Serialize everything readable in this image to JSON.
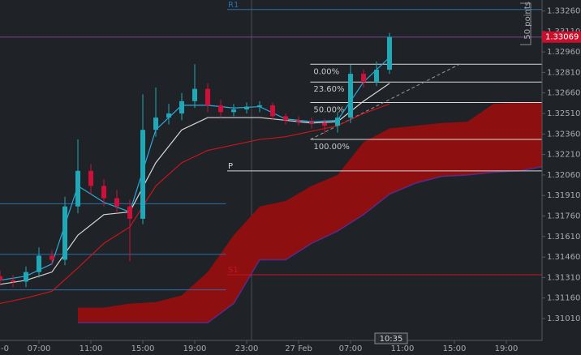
{
  "chart_data": {
    "type": "candlestick",
    "x": [
      1,
      2,
      3,
      4,
      5,
      6,
      7,
      8,
      9,
      10,
      11,
      12,
      13,
      14,
      15,
      16,
      17,
      18,
      19,
      20,
      21,
      22,
      23,
      24,
      25,
      26,
      27,
      28,
      29,
      30,
      31
    ],
    "open": [
      1.3132,
      1.3129,
      1.3128,
      1.3135,
      1.3147,
      1.3144,
      1.3183,
      1.3209,
      1.3198,
      1.3189,
      1.3183,
      1.3174,
      1.3239,
      1.3248,
      1.3251,
      1.326,
      1.3269,
      1.3257,
      1.3252,
      1.3254,
      1.3256,
      1.3257,
      1.3249,
      1.3246,
      1.3245,
      1.3244,
      1.3242,
      1.3248,
      1.328,
      1.3274,
      1.3283
    ],
    "high": [
      1.3136,
      1.3133,
      1.3139,
      1.3153,
      1.3151,
      1.319,
      1.3232,
      1.3214,
      1.3203,
      1.3195,
      1.3188,
      1.3265,
      1.327,
      1.3258,
      1.3266,
      1.3287,
      1.3273,
      1.3261,
      1.3258,
      1.3259,
      1.326,
      1.3259,
      1.3251,
      1.3249,
      1.3248,
      1.3247,
      1.3252,
      1.3287,
      1.3283,
      1.3289,
      1.331
    ],
    "low": [
      1.3125,
      1.3124,
      1.3124,
      1.3131,
      1.314,
      1.314,
      1.3178,
      1.3192,
      1.3183,
      1.3178,
      1.3143,
      1.317,
      1.3234,
      1.3243,
      1.3246,
      1.3255,
      1.3252,
      1.3248,
      1.3249,
      1.3251,
      1.3252,
      1.3246,
      1.3243,
      1.3242,
      1.324,
      1.3236,
      1.3237,
      1.3244,
      1.327,
      1.3271,
      1.328
    ],
    "close": [
      1.3129,
      1.3128,
      1.3135,
      1.3147,
      1.3144,
      1.3183,
      1.3209,
      1.3198,
      1.3189,
      1.3183,
      1.3174,
      1.3239,
      1.3248,
      1.3251,
      1.326,
      1.3269,
      1.3257,
      1.3252,
      1.3254,
      1.3256,
      1.3257,
      1.3249,
      1.3246,
      1.3245,
      1.3244,
      1.3242,
      1.3248,
      1.328,
      1.3274,
      1.3283,
      1.33069
    ],
    "up_color": "#1fa9b8",
    "down_color": "#d0103a",
    "series": [
      {
        "color": "#2aa9dc",
        "x": [
          1,
          3,
          5,
          7,
          9,
          11,
          13,
          15,
          17,
          19,
          21,
          23,
          25,
          27,
          29,
          31
        ],
        "values": [
          1.3129,
          1.3132,
          1.3141,
          1.3198,
          1.3186,
          1.3179,
          1.3239,
          1.3257,
          1.3257,
          1.3255,
          1.3256,
          1.3247,
          1.3245,
          1.3246,
          1.3274,
          1.3292
        ]
      },
      {
        "color": "#d6d6d6",
        "x": [
          1,
          3,
          5,
          7,
          9,
          11,
          13,
          15,
          17,
          19,
          21,
          23,
          25,
          27,
          29,
          31
        ],
        "values": [
          1.3126,
          1.3129,
          1.3135,
          1.3162,
          1.3177,
          1.3179,
          1.3215,
          1.3239,
          1.3248,
          1.3248,
          1.3248,
          1.3246,
          1.3244,
          1.3245,
          1.326,
          1.3273
        ]
      },
      {
        "color": "#c8161d",
        "x": [
          1,
          3,
          5,
          7,
          9,
          11,
          13,
          15,
          17,
          19,
          21,
          23,
          25,
          27,
          29,
          31
        ],
        "values": [
          1.3112,
          1.3116,
          1.3121,
          1.3138,
          1.3156,
          1.3168,
          1.3198,
          1.3215,
          1.3224,
          1.3228,
          1.3232,
          1.3234,
          1.3238,
          1.3242,
          1.3251,
          1.3258
        ]
      }
    ],
    "cloud": {
      "color": "#8e0f10",
      "edge_color": "#5a2a8a",
      "x": [
        7,
        9,
        11,
        13,
        15,
        17,
        19,
        21,
        23,
        25,
        27,
        29,
        31,
        33,
        35,
        37,
        39,
        41,
        42.75
      ],
      "upper": [
        1.3109,
        1.3109,
        1.3112,
        1.3113,
        1.3118,
        1.3135,
        1.3162,
        1.3183,
        1.3187,
        1.3198,
        1.3206,
        1.323,
        1.324,
        1.3242,
        1.3244,
        1.3245,
        1.3258,
        1.3259,
        1.3259
      ],
      "lower": [
        1.3098,
        1.3098,
        1.3098,
        1.3098,
        1.3098,
        1.3098,
        1.3112,
        1.3144,
        1.3144,
        1.3156,
        1.3165,
        1.3177,
        1.3192,
        1.32,
        1.3205,
        1.3206,
        1.3208,
        1.3209,
        1.3212
      ]
    },
    "levels": [
      {
        "name": "R1",
        "value": 1.3327,
        "start": 18.5,
        "color": "#2a6fa8"
      },
      {
        "name": "P",
        "value": 1.3209,
        "start": 18.5,
        "color": "#d8d8d8"
      },
      {
        "name": "S1",
        "value": 1.3133,
        "start": 18.5,
        "color": "#c8161d"
      }
    ],
    "previous_levels": {
      "values": [
        1.3185,
        1.3148,
        1.3122
      ],
      "end": 18.4,
      "color": "#2a6fa8"
    },
    "fib": {
      "start": 24.9,
      "color": "#d8d8d8",
      "levels": [
        {
          "label": "0.00%",
          "value": 1.3287
        },
        {
          "label": "23.60%",
          "value": 1.3274
        },
        {
          "label": "50.00%",
          "value": 1.3259
        },
        {
          "label": "100.00%",
          "value": 1.3232
        }
      ]
    },
    "trendline": {
      "x": [
        24.9,
        36.6
      ],
      "values": [
        1.3232,
        1.3288
      ],
      "color": "#9a9a9a"
    },
    "last": 1.33069,
    "last_color": "#c8102e",
    "ruler_label": "50 points",
    "cursor_time": "10:35",
    "xlim": [
      1,
      42.75
    ],
    "ylim": [
      1.3085,
      1.3334
    ],
    "xticks": [
      {
        "value": 0,
        "label": "-0"
      },
      {
        "value": 4,
        "label": "07:00"
      },
      {
        "value": 8,
        "label": "11:00"
      },
      {
        "value": 12,
        "label": "15:00"
      },
      {
        "value": 16,
        "label": "19:00"
      },
      {
        "value": 20,
        "label": "23:00"
      },
      {
        "value": 24,
        "label": "27 Feb"
      },
      {
        "value": 28,
        "label": "07:00"
      },
      {
        "value": 32,
        "label": "11:00"
      },
      {
        "value": 36,
        "label": "15:00"
      },
      {
        "value": 40,
        "label": "19:00"
      }
    ],
    "yticks": [
      {
        "value": 1.3326,
        "label": "1.33260"
      },
      {
        "value": 1.3311,
        "label": "1.33110"
      },
      {
        "value": 1.3296,
        "label": "1.32960"
      },
      {
        "value": 1.3281,
        "label": "1.32810"
      },
      {
        "value": 1.3266,
        "label": "1.32660"
      },
      {
        "value": 1.3251,
        "label": "1.32510"
      },
      {
        "value": 1.3236,
        "label": "1.32360"
      },
      {
        "value": 1.3221,
        "label": "1.32210"
      },
      {
        "value": 1.3206,
        "label": "1.32060"
      },
      {
        "value": 1.3191,
        "label": "1.31910"
      },
      {
        "value": 1.3176,
        "label": "1.31760"
      },
      {
        "value": 1.3161,
        "label": "1.31610"
      },
      {
        "value": 1.3146,
        "label": "1.31460"
      },
      {
        "value": 1.3131,
        "label": "1.31310"
      },
      {
        "value": 1.3116,
        "label": "1.31160"
      },
      {
        "value": 1.3101,
        "label": "1.31010"
      }
    ]
  }
}
